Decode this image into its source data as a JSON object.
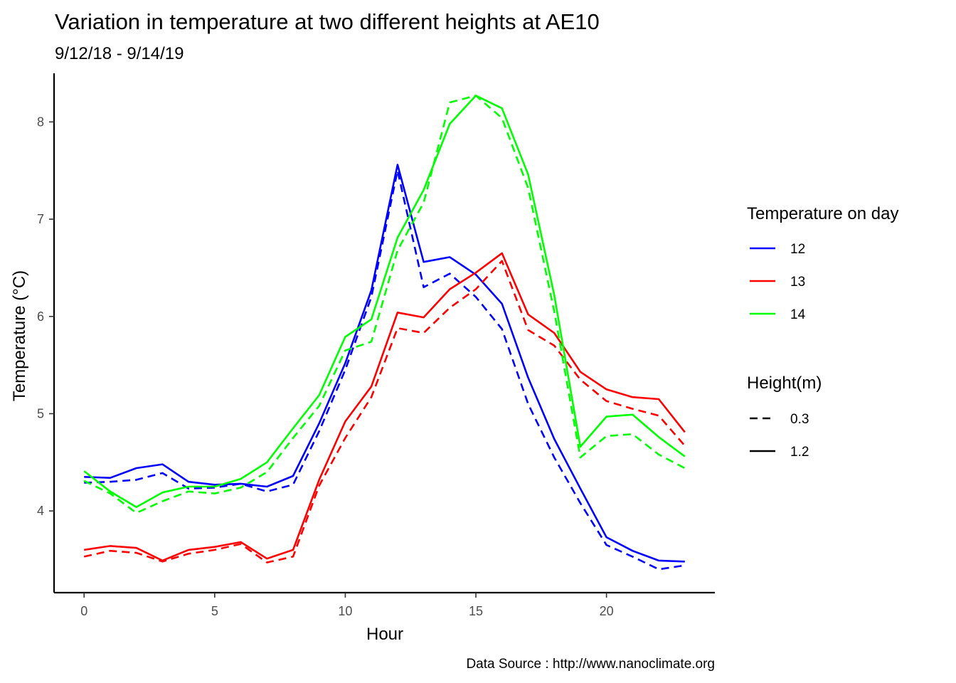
{
  "chart_data": {
    "type": "line",
    "title": "Variation in temperature at two different heights at AE10",
    "subtitle": "9/12/18 - 9/14/19",
    "xlabel": "Hour",
    "ylabel": "Temperature (°C)",
    "caption": "Data Source : http://www.nanoclimate.org",
    "xlim": [
      -1.15,
      24.15
    ],
    "ylim": [
      3.16,
      8.5
    ],
    "x_ticks": [
      0,
      5,
      10,
      15,
      20
    ],
    "y_ticks": [
      4,
      5,
      6,
      7,
      8
    ],
    "grid": false,
    "legend_position": "right",
    "colors": {
      "12": "#0000ff",
      "13": "#ff0000",
      "14": "#00ff00"
    },
    "legend": {
      "color_title": "Temperature on day",
      "color_entries": [
        "12",
        "13",
        "14"
      ],
      "linetype_title": "Height(m)",
      "linetype_entries": [
        "0.3",
        "1.2"
      ]
    },
    "x": [
      0,
      1,
      2,
      3,
      4,
      5,
      6,
      7,
      8,
      9,
      10,
      11,
      12,
      13,
      14,
      15,
      16,
      17,
      18,
      19,
      20,
      21,
      22,
      23
    ],
    "series": [
      {
        "day": "12",
        "height": "1.2",
        "values": [
          4.35,
          4.34,
          4.44,
          4.48,
          4.3,
          4.27,
          4.28,
          4.25,
          4.36,
          4.9,
          5.52,
          6.27,
          7.56,
          6.56,
          6.61,
          6.43,
          6.13,
          5.37,
          4.74,
          4.23,
          3.73,
          3.59,
          3.49,
          3.48
        ]
      },
      {
        "day": "12",
        "height": "0.3",
        "values": [
          4.29,
          4.3,
          4.32,
          4.39,
          4.23,
          4.24,
          4.28,
          4.2,
          4.27,
          4.82,
          5.45,
          6.2,
          7.5,
          6.3,
          6.44,
          6.2,
          5.87,
          5.1,
          4.55,
          4.08,
          3.65,
          3.53,
          3.4,
          3.44
        ]
      },
      {
        "day": "13",
        "height": "1.2",
        "values": [
          3.6,
          3.64,
          3.62,
          3.49,
          3.6,
          3.63,
          3.68,
          3.51,
          3.6,
          4.32,
          4.92,
          5.28,
          6.04,
          5.99,
          6.28,
          6.45,
          6.65,
          6.02,
          5.83,
          5.43,
          5.25,
          5.17,
          5.15,
          4.81
        ]
      },
      {
        "day": "13",
        "height": "0.3",
        "values": [
          3.53,
          3.59,
          3.57,
          3.48,
          3.56,
          3.6,
          3.66,
          3.47,
          3.53,
          4.26,
          4.75,
          5.17,
          5.88,
          5.83,
          6.09,
          6.28,
          6.57,
          5.86,
          5.7,
          5.35,
          5.13,
          5.05,
          4.98,
          4.67
        ]
      },
      {
        "day": "14",
        "height": "1.2",
        "values": [
          4.41,
          4.2,
          4.04,
          4.19,
          4.25,
          4.25,
          4.33,
          4.5,
          4.85,
          5.19,
          5.79,
          5.97,
          6.81,
          7.3,
          7.98,
          8.27,
          8.14,
          7.46,
          6.22,
          4.66,
          4.97,
          4.99,
          4.76,
          4.56
        ]
      },
      {
        "day": "14",
        "height": "0.3",
        "values": [
          4.31,
          4.18,
          3.98,
          4.1,
          4.2,
          4.18,
          4.24,
          4.4,
          4.75,
          5.08,
          5.65,
          5.74,
          6.68,
          7.17,
          8.2,
          8.27,
          8.04,
          7.32,
          6.05,
          4.55,
          4.77,
          4.79,
          4.58,
          4.44
        ]
      }
    ]
  }
}
